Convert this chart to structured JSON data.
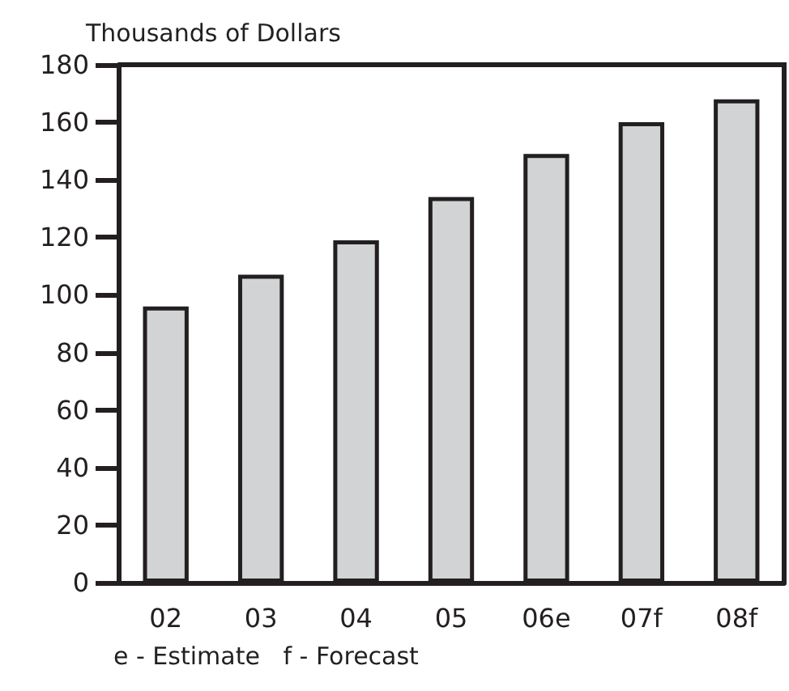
{
  "chart_data": {
    "type": "bar",
    "ylabel": "Thousands of Dollars",
    "categories": [
      "02",
      "03",
      "04",
      "05",
      "06e",
      "07f",
      "08f"
    ],
    "values": [
      96,
      107,
      119,
      134,
      149,
      160,
      168
    ],
    "color": "#d1d3d4",
    "ylim": [
      0,
      180
    ],
    "yticks": [
      0,
      20,
      40,
      60,
      80,
      100,
      120,
      140,
      160,
      180
    ],
    "grid": false,
    "annotations": [
      "e - Estimate   f - Forecast"
    ]
  }
}
